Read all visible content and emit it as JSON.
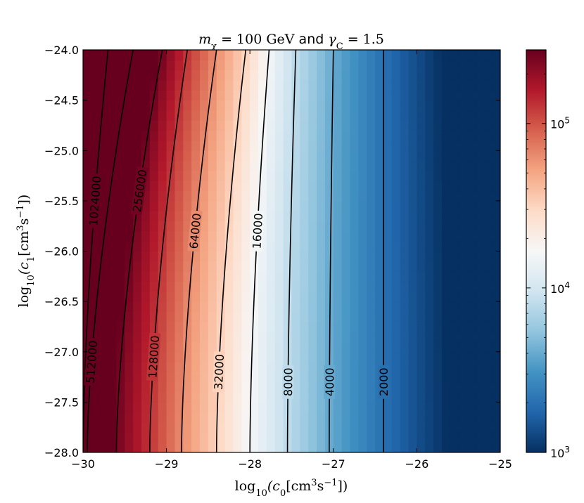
{
  "chart_data": {
    "type": "heatmap",
    "title": "m_χ = 100 GeV and γ_C = 1.5",
    "title_parts": [
      "m",
      "χ",
      " = 100 GeV ",
      "and",
      " γ",
      "C",
      " = 1.5"
    ],
    "xlabel_parts": [
      "log",
      "10",
      "(c",
      "0",
      "[cm",
      "3",
      "s",
      "−1",
      "])"
    ],
    "ylabel_parts": [
      "log",
      "10",
      "(c",
      "1",
      "[cm",
      "3",
      "s",
      "−1",
      "])"
    ],
    "xlim": [
      -30,
      -25
    ],
    "ylim": [
      -28,
      -24
    ],
    "x_ticks": [
      -30,
      -29,
      -28,
      -27,
      -26,
      -25
    ],
    "x_tick_labels": [
      "−30",
      "−29",
      "−28",
      "−27",
      "−26",
      "−25"
    ],
    "y_ticks": [
      -24.0,
      -24.5,
      -25.0,
      -25.5,
      -26.0,
      -26.5,
      -27.0,
      -27.5,
      -28.0
    ],
    "y_tick_labels": [
      "−24.0",
      "−24.5",
      "−25.0",
      "−25.5",
      "−26.0",
      "−26.5",
      "−27.0",
      "−27.5",
      "−28.0"
    ],
    "colorbar": {
      "scale": "log",
      "range": [
        1000,
        280000
      ],
      "ticks": [
        {
          "value": 1000,
          "label": "10",
          "exp": "3"
        },
        {
          "value": 10000,
          "label": "10",
          "exp": "4"
        },
        {
          "value": 100000,
          "label": "10",
          "exp": "5"
        }
      ],
      "colormap": "RdBu_r",
      "colors": [
        "#053061",
        "#2166ac",
        "#4393c3",
        "#92c5de",
        "#d1e5f0",
        "#f7f7f7",
        "#fddbc7",
        "#f4a582",
        "#d6604d",
        "#b2182b",
        "#67001f"
      ]
    },
    "contours": [
      {
        "level": 2000,
        "label": "2000",
        "x_bottom": -26.4,
        "x_top": -26.4
      },
      {
        "level": 4000,
        "label": "4000",
        "x_bottom": -27.05,
        "x_top": -27.0
      },
      {
        "level": 8000,
        "label": "8000",
        "x_bottom": -27.55,
        "x_top": -27.45
      },
      {
        "level": 16000,
        "label": "16000",
        "x_bottom": -28.0,
        "x_top": -27.77
      },
      {
        "level": 32000,
        "label": "32000",
        "x_bottom": -28.4,
        "x_top": -28.05
      },
      {
        "level": 64000,
        "label": "64000",
        "x_bottom": -28.82,
        "x_top": -28.4
      },
      {
        "level": 128000,
        "label": "128000",
        "x_bottom": -29.2,
        "x_top": -28.75
      },
      {
        "level": 256000,
        "label": "256000",
        "x_bottom": -29.6,
        "x_top": -29.05
      },
      {
        "level": 512000,
        "label": "512000",
        "x_bottom": -29.95,
        "x_top": -29.4
      },
      {
        "level": 1024000,
        "label": "1024000",
        "x_bottom": -30.0,
        "x_top": -29.7
      }
    ]
  }
}
